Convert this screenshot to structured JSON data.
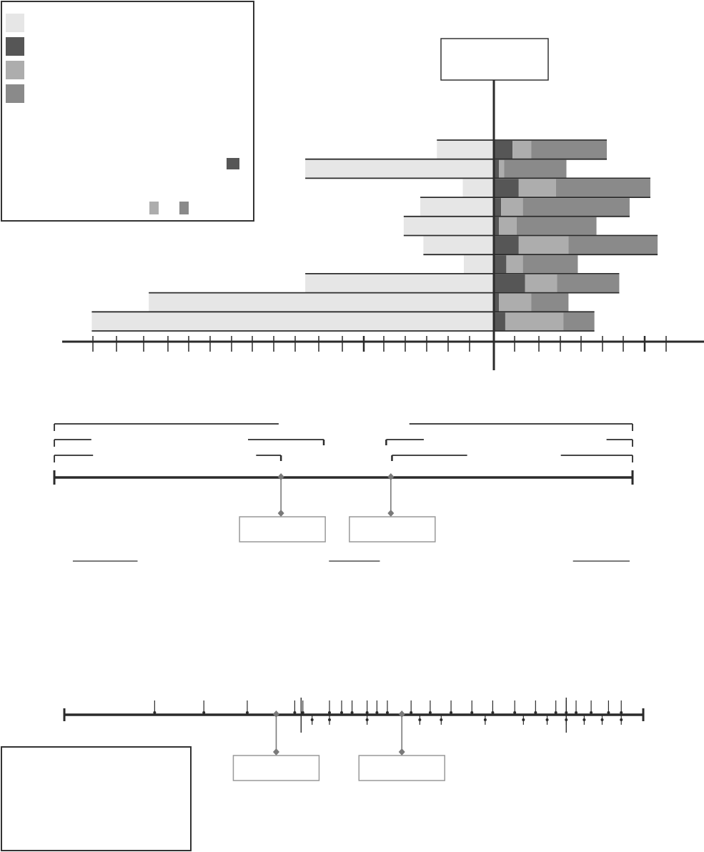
{
  "colors": {
    "light": "#e6e6e6",
    "dark": "#565656",
    "mid": "#adadad",
    "midDark": "#8a8a8a",
    "line": "#2b2b2b",
    "leader": "#7a7a7a",
    "boxStroke": "#999999"
  },
  "legend": {
    "swatches": [
      "light",
      "dark",
      "mid",
      "midDark"
    ],
    "inline_swatches": [
      "dark",
      "mid",
      "midDark"
    ]
  },
  "chart_data": {
    "type": "bar",
    "orientation": "horizontal",
    "stacked": true,
    "diverging": true,
    "title": "",
    "xlabel": "",
    "ylabel": "",
    "xlim": [
      -420,
      180
    ],
    "grid": false,
    "legend_position": "top-left",
    "rows": 10,
    "series": [
      {
        "color": "light",
        "side": "left",
        "values": [
          -55,
          -182,
          -30,
          -71,
          -87,
          -68,
          -29,
          -182,
          -333,
          -388
        ]
      },
      {
        "color": "dark",
        "side": "right",
        "values": [
          18,
          5,
          24,
          7,
          5,
          24,
          12,
          30,
          5,
          11
        ]
      },
      {
        "color": "mid",
        "side": "right",
        "values": [
          18,
          5,
          36,
          21,
          17,
          48,
          16,
          31,
          31,
          56
        ]
      },
      {
        "color": "midDark",
        "side": "right",
        "values": [
          73,
          60,
          91,
          103,
          77,
          86,
          53,
          60,
          36,
          30
        ]
      }
    ]
  },
  "timeline": {
    "range": [
      0,
      100
    ],
    "brackets": [
      {
        "from": 0,
        "to": 38.8
      },
      {
        "from": 61.4,
        "to": 100
      },
      {
        "from": 0,
        "to": 6.4
      },
      {
        "from": 33.5,
        "to": 46.6
      },
      {
        "from": 57.4,
        "to": 63.9
      },
      {
        "from": 95.5,
        "to": 100
      },
      {
        "from": 0,
        "to": 6.7
      },
      {
        "from": 34.9,
        "to": 39.2
      },
      {
        "from": 58.4,
        "to": 71.4
      },
      {
        "from": 87.6,
        "to": 100
      }
    ],
    "markers": [
      39.2,
      58.2
    ],
    "underlines": [
      {
        "from": 3.2,
        "to": 14.4
      },
      {
        "from": 47.5,
        "to": 56.3
      },
      {
        "from": 89.7,
        "to": 99.5
      }
    ]
  },
  "event_axis": {
    "range": [
      0,
      100
    ],
    "up_ticks": [
      15.6,
      24.1,
      31.6,
      39.8,
      41.2,
      45.8,
      47.9,
      49.7,
      52.3,
      54.0,
      55.8,
      59.9,
      63.2,
      66.8,
      70.4,
      74.0,
      77.8,
      81.4,
      84.9,
      86.7,
      88.4,
      91.0,
      94.0,
      96.2
    ],
    "down_ticks": [
      42.8,
      45.8,
      52.3,
      61.4,
      65.1,
      72.7,
      79.3,
      83.4,
      86.7,
      89.8,
      92.9,
      96.2
    ],
    "tall_ticks": [
      40.9,
      86.7
    ],
    "markers": [
      36.6,
      58.3
    ]
  }
}
